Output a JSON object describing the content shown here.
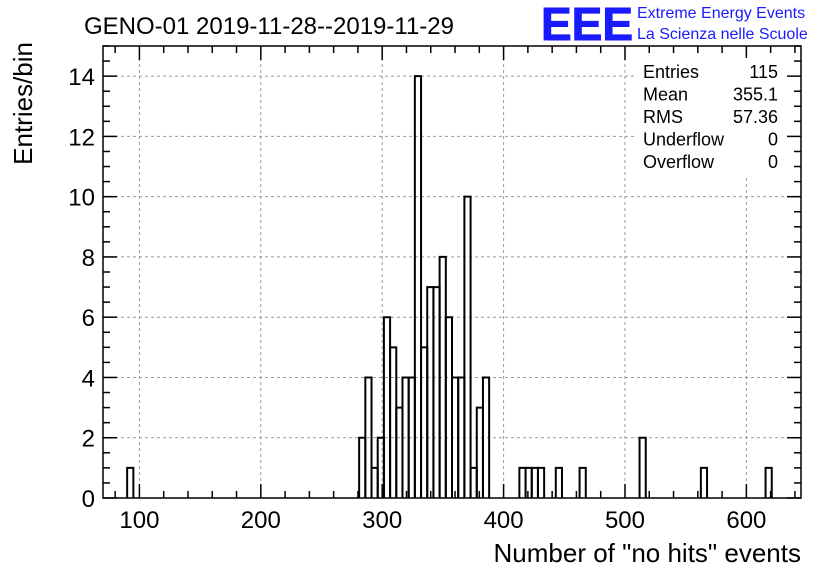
{
  "header": {
    "title": "GENO-01 2019-11-28--2019-11-29",
    "logo_text": "EEE",
    "logo_line1": "Extreme Energy Events",
    "logo_line2": "La Scienza nelle Scuole",
    "logo_color": "#1a1aff"
  },
  "stats": [
    {
      "label": "Entries",
      "value": "115"
    },
    {
      "label": "Mean",
      "value": "355.1"
    },
    {
      "label": "RMS",
      "value": "57.36"
    },
    {
      "label": "Underflow",
      "value": "0"
    },
    {
      "label": "Overflow",
      "value": "0"
    }
  ],
  "chart_data": {
    "type": "histogram",
    "xlabel": "Number of \"no hits\" events",
    "ylabel": "Entries/bin",
    "xlim": [
      70,
      645
    ],
    "ylim": [
      0,
      15
    ],
    "xticks": [
      100,
      200,
      300,
      400,
      500,
      600
    ],
    "yticks": [
      0,
      2,
      4,
      6,
      8,
      10,
      12,
      14
    ],
    "grid": true,
    "bin_width": 5.1,
    "bins": [
      {
        "x0": 89.9,
        "count": 1
      },
      {
        "x0": 281.0,
        "count": 2
      },
      {
        "x0": 286.1,
        "count": 4
      },
      {
        "x0": 291.2,
        "count": 1
      },
      {
        "x0": 296.3,
        "count": 2
      },
      {
        "x0": 301.4,
        "count": 6
      },
      {
        "x0": 306.5,
        "count": 5
      },
      {
        "x0": 311.6,
        "count": 3
      },
      {
        "x0": 316.7,
        "count": 4
      },
      {
        "x0": 321.8,
        "count": 4
      },
      {
        "x0": 326.9,
        "count": 14
      },
      {
        "x0": 332.0,
        "count": 5
      },
      {
        "x0": 337.1,
        "count": 7
      },
      {
        "x0": 342.2,
        "count": 7
      },
      {
        "x0": 347.3,
        "count": 8
      },
      {
        "x0": 352.4,
        "count": 6
      },
      {
        "x0": 357.5,
        "count": 4
      },
      {
        "x0": 362.6,
        "count": 4
      },
      {
        "x0": 367.7,
        "count": 10
      },
      {
        "x0": 372.8,
        "count": 1
      },
      {
        "x0": 377.9,
        "count": 3
      },
      {
        "x0": 383.0,
        "count": 4
      },
      {
        "x0": 413.0,
        "count": 1
      },
      {
        "x0": 418.1,
        "count": 1
      },
      {
        "x0": 423.2,
        "count": 1
      },
      {
        "x0": 428.3,
        "count": 1
      },
      {
        "x0": 443.0,
        "count": 1
      },
      {
        "x0": 462.6,
        "count": 1
      },
      {
        "x0": 512.0,
        "count": 2
      },
      {
        "x0": 562.5,
        "count": 1
      },
      {
        "x0": 615.8,
        "count": 1
      }
    ]
  }
}
